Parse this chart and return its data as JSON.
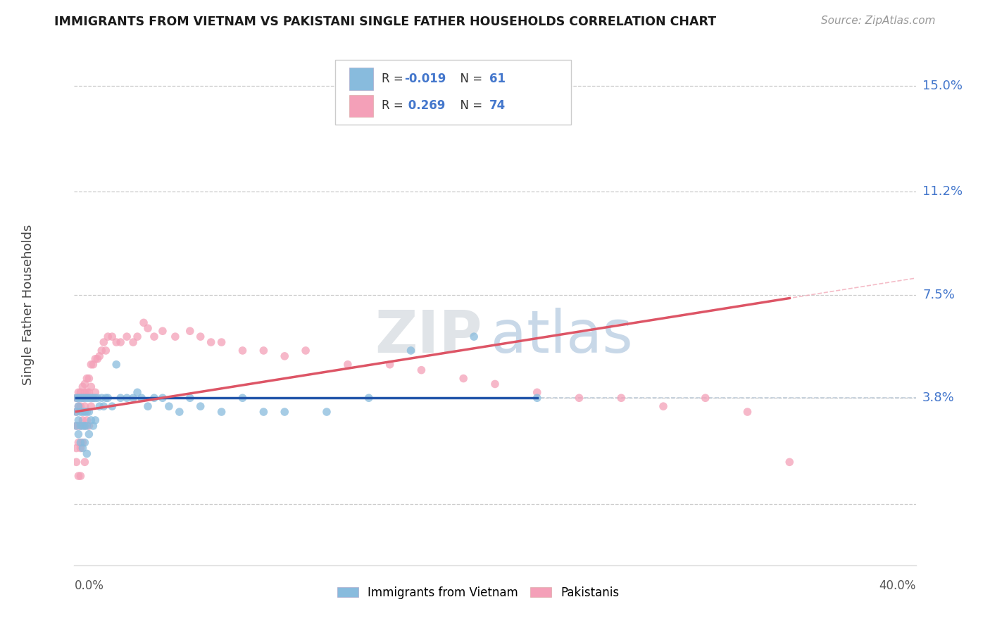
{
  "title": "IMMIGRANTS FROM VIETNAM VS PAKISTANI SINGLE FATHER HOUSEHOLDS CORRELATION CHART",
  "source": "Source: ZipAtlas.com",
  "ylabel": "Single Father Households",
  "ytick_vals": [
    0.0,
    0.038,
    0.075,
    0.112,
    0.15
  ],
  "ytick_labels": [
    "",
    "3.8%",
    "7.5%",
    "11.2%",
    "15.0%"
  ],
  "xlim": [
    0.0,
    0.4
  ],
  "ylim": [
    -0.022,
    0.165
  ],
  "color_blue": "#88bbdd",
  "color_pink": "#f4a0b8",
  "trend_blue_color": "#2255aa",
  "trend_pink_color": "#dd5566",
  "trend_blue_dash_color": "#aabbcc",
  "trend_pink_dash_color": "#f0a0b0",
  "watermark_zip_color": "#e0e4e8",
  "watermark_atlas_color": "#c8d8e8",
  "vietnam_x": [
    0.001,
    0.001,
    0.001,
    0.002,
    0.002,
    0.002,
    0.002,
    0.003,
    0.003,
    0.003,
    0.003,
    0.004,
    0.004,
    0.004,
    0.004,
    0.005,
    0.005,
    0.005,
    0.005,
    0.006,
    0.006,
    0.006,
    0.006,
    0.007,
    0.007,
    0.007,
    0.008,
    0.008,
    0.009,
    0.009,
    0.01,
    0.01,
    0.011,
    0.012,
    0.013,
    0.014,
    0.015,
    0.016,
    0.018,
    0.02,
    0.022,
    0.025,
    0.028,
    0.03,
    0.032,
    0.035,
    0.038,
    0.042,
    0.045,
    0.05,
    0.055,
    0.06,
    0.07,
    0.08,
    0.09,
    0.1,
    0.12,
    0.14,
    0.16,
    0.19,
    0.22
  ],
  "vietnam_y": [
    0.038,
    0.033,
    0.028,
    0.038,
    0.035,
    0.03,
    0.025,
    0.038,
    0.033,
    0.028,
    0.022,
    0.038,
    0.033,
    0.028,
    0.02,
    0.038,
    0.033,
    0.028,
    0.022,
    0.038,
    0.033,
    0.028,
    0.018,
    0.038,
    0.033,
    0.025,
    0.038,
    0.03,
    0.038,
    0.028,
    0.038,
    0.03,
    0.038,
    0.035,
    0.038,
    0.035,
    0.038,
    0.038,
    0.035,
    0.05,
    0.038,
    0.038,
    0.038,
    0.04,
    0.038,
    0.035,
    0.038,
    0.038,
    0.035,
    0.033,
    0.038,
    0.035,
    0.033,
    0.038,
    0.033,
    0.033,
    0.033,
    0.038,
    0.055,
    0.06,
    0.038
  ],
  "pakistan_x": [
    0.001,
    0.001,
    0.001,
    0.001,
    0.001,
    0.002,
    0.002,
    0.002,
    0.002,
    0.002,
    0.003,
    0.003,
    0.003,
    0.003,
    0.003,
    0.004,
    0.004,
    0.004,
    0.004,
    0.005,
    0.005,
    0.005,
    0.005,
    0.005,
    0.006,
    0.006,
    0.006,
    0.007,
    0.007,
    0.007,
    0.008,
    0.008,
    0.008,
    0.009,
    0.009,
    0.01,
    0.01,
    0.011,
    0.012,
    0.013,
    0.014,
    0.015,
    0.016,
    0.018,
    0.02,
    0.022,
    0.025,
    0.028,
    0.03,
    0.033,
    0.035,
    0.038,
    0.042,
    0.048,
    0.055,
    0.06,
    0.065,
    0.07,
    0.08,
    0.09,
    0.1,
    0.11,
    0.13,
    0.15,
    0.165,
    0.185,
    0.2,
    0.22,
    0.24,
    0.26,
    0.28,
    0.3,
    0.32,
    0.34
  ],
  "pakistan_y": [
    0.038,
    0.033,
    0.028,
    0.02,
    0.015,
    0.04,
    0.035,
    0.028,
    0.022,
    0.01,
    0.04,
    0.035,
    0.028,
    0.02,
    0.01,
    0.042,
    0.038,
    0.03,
    0.022,
    0.043,
    0.04,
    0.035,
    0.028,
    0.015,
    0.045,
    0.04,
    0.03,
    0.045,
    0.04,
    0.028,
    0.05,
    0.042,
    0.035,
    0.05,
    0.038,
    0.052,
    0.04,
    0.052,
    0.053,
    0.055,
    0.058,
    0.055,
    0.06,
    0.06,
    0.058,
    0.058,
    0.06,
    0.058,
    0.06,
    0.065,
    0.063,
    0.06,
    0.062,
    0.06,
    0.062,
    0.06,
    0.058,
    0.058,
    0.055,
    0.055,
    0.053,
    0.055,
    0.05,
    0.05,
    0.048,
    0.045,
    0.043,
    0.04,
    0.038,
    0.038,
    0.035,
    0.038,
    0.033,
    0.015
  ]
}
